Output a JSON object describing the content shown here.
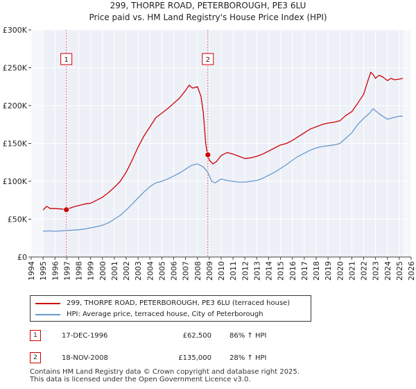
{
  "title_line1": "299, THORPE ROAD, PETERBOROUGH, PE3 6LU",
  "title_line2": "Price paid vs. HM Land Registry's House Price Index (HPI)",
  "chart_data": {
    "type": "line",
    "title": "299, THORPE ROAD, PETERBOROUGH, PE3 6LU — Price paid vs. HM Land Registry's House Price Index (HPI)",
    "xlabel": "",
    "ylabel": "",
    "xlim": [
      1994,
      2026
    ],
    "ylim": [
      0,
      300000
    ],
    "x_ticks": [
      "1994",
      "1995",
      "1996",
      "1997",
      "1998",
      "1999",
      "2000",
      "2001",
      "2002",
      "2003",
      "2004",
      "2005",
      "2006",
      "2007",
      "2008",
      "2009",
      "2010",
      "2011",
      "2012",
      "2013",
      "2014",
      "2015",
      "2016",
      "2017",
      "2018",
      "2019",
      "2020",
      "2021",
      "2022",
      "2023",
      "2024",
      "2025",
      "2026"
    ],
    "y_ticks": [
      {
        "value": 0,
        "label": "£0"
      },
      {
        "value": 50000,
        "label": "£50K"
      },
      {
        "value": 100000,
        "label": "£100K"
      },
      {
        "value": 150000,
        "label": "£150K"
      },
      {
        "value": 200000,
        "label": "£200K"
      },
      {
        "value": 250000,
        "label": "£250K"
      },
      {
        "value": 300000,
        "label": "£300K"
      }
    ],
    "grid": true,
    "series": [
      {
        "name": "299, THORPE ROAD, PETERBOROUGH, PE3 6LU (terraced house)",
        "color": "#cc0000",
        "x": [
          1995.0,
          1995.3,
          1995.6,
          1996.0,
          1996.5,
          1996.96,
          1997.5,
          1998.0,
          1998.5,
          1999.0,
          1999.5,
          2000.0,
          2000.5,
          2001.0,
          2001.5,
          2002.0,
          2002.5,
          2003.0,
          2003.5,
          2004.0,
          2004.5,
          2005.0,
          2005.5,
          2006.0,
          2006.5,
          2007.0,
          2007.3,
          2007.6,
          2008.0,
          2008.3,
          2008.5,
          2008.7,
          2008.8,
          2008.88,
          2009.0,
          2009.3,
          2009.6,
          2010.0,
          2010.5,
          2011.0,
          2011.5,
          2012.0,
          2012.5,
          2013.0,
          2013.5,
          2014.0,
          2014.5,
          2015.0,
          2015.5,
          2016.0,
          2016.5,
          2017.0,
          2017.5,
          2018.0,
          2018.5,
          2019.0,
          2019.5,
          2020.0,
          2020.5,
          2021.0,
          2021.5,
          2022.0,
          2022.3,
          2022.6,
          2022.8,
          2023.0,
          2023.3,
          2023.6,
          2024.0,
          2024.3,
          2024.6,
          2025.0,
          2025.3
        ],
        "values": [
          62000,
          67000,
          64000,
          64000,
          63500,
          62500,
          66000,
          68000,
          70000,
          71000,
          75000,
          79000,
          85000,
          92000,
          100000,
          112000,
          128000,
          145000,
          160000,
          172000,
          184000,
          190000,
          196000,
          203000,
          210000,
          220000,
          227000,
          223000,
          225000,
          212000,
          190000,
          150000,
          140000,
          135000,
          128000,
          123000,
          126000,
          134000,
          138000,
          136000,
          133000,
          130000,
          131000,
          133000,
          136000,
          140000,
          144000,
          148000,
          150000,
          154000,
          159000,
          164000,
          169000,
          172000,
          175000,
          177000,
          178000,
          180000,
          187000,
          192000,
          203000,
          215000,
          230000,
          244000,
          241000,
          236000,
          240000,
          238000,
          233000,
          236000,
          234000,
          235000,
          236000
        ]
      },
      {
        "name": "HPI: Average price, terraced house, City of Peterborough",
        "color": "#6699cc",
        "x": [
          1995.0,
          1995.5,
          1996.0,
          1996.5,
          1997.0,
          1997.5,
          1998.0,
          1998.5,
          1999.0,
          1999.5,
          2000.0,
          2000.5,
          2001.0,
          2001.5,
          2002.0,
          2002.5,
          2003.0,
          2003.5,
          2004.0,
          2004.5,
          2005.0,
          2005.5,
          2006.0,
          2006.5,
          2007.0,
          2007.5,
          2008.0,
          2008.5,
          2008.9,
          2009.2,
          2009.5,
          2010.0,
          2010.5,
          2011.0,
          2011.5,
          2012.0,
          2012.5,
          2013.0,
          2013.5,
          2014.0,
          2014.5,
          2015.0,
          2015.5,
          2016.0,
          2016.5,
          2017.0,
          2017.5,
          2018.0,
          2018.5,
          2019.0,
          2019.5,
          2020.0,
          2020.5,
          2021.0,
          2021.5,
          2022.0,
          2022.5,
          2022.8,
          2023.0,
          2023.5,
          2024.0,
          2024.5,
          2025.0,
          2025.3
        ],
        "values": [
          34000,
          34500,
          34000,
          34500,
          35000,
          35500,
          36000,
          37000,
          38500,
          40000,
          42000,
          45000,
          50000,
          55000,
          62000,
          70000,
          78000,
          86000,
          93000,
          98000,
          100000,
          103000,
          107000,
          111000,
          116000,
          121000,
          123000,
          119000,
          111000,
          100000,
          98000,
          103000,
          101000,
          100000,
          99000,
          99000,
          100000,
          101000,
          104000,
          108000,
          112000,
          117000,
          122000,
          128000,
          133000,
          137000,
          141000,
          144000,
          146000,
          147000,
          148000,
          150000,
          157000,
          164000,
          175000,
          183000,
          190000,
          196000,
          193000,
          187000,
          182000,
          184000,
          186000,
          186000
        ]
      }
    ],
    "annotations": [
      {
        "label": "1",
        "x": 1996.96,
        "value": 62500
      },
      {
        "label": "2",
        "x": 2008.88,
        "value": 135000
      }
    ]
  },
  "legend": {
    "items": [
      {
        "label": "299, THORPE ROAD, PETERBOROUGH, PE3 6LU (terraced house)",
        "color": "#cc0000"
      },
      {
        "label": "HPI: Average price, terraced house, City of Peterborough",
        "color": "#6699cc"
      }
    ]
  },
  "transactions": [
    {
      "num": "1",
      "date": "17-DEC-1996",
      "price": "£62,500",
      "hpi": "86% ↑ HPI"
    },
    {
      "num": "2",
      "date": "18-NOV-2008",
      "price": "£135,000",
      "hpi": "28% ↑ HPI"
    }
  ],
  "footer": {
    "line1": "Contains HM Land Registry data © Crown copyright and database right 2025.",
    "line2": "This data is licensed under the Open Government Licence v3.0."
  }
}
